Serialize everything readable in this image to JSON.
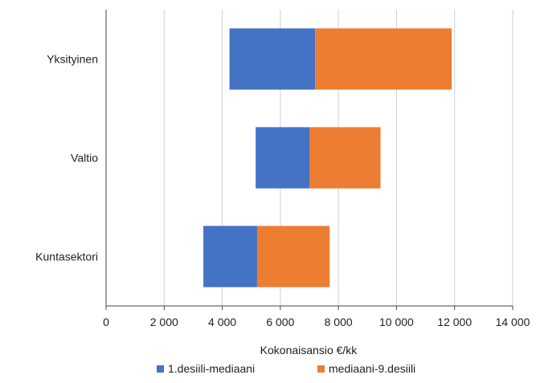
{
  "chart_data": {
    "type": "bar",
    "orientation": "horizontal",
    "stacked": true,
    "floating": true,
    "title": "",
    "xlabel": "Kokonaisansio €/kk",
    "ylabel": "",
    "xlim": [
      0,
      14000
    ],
    "x_ticks": [
      0,
      2000,
      4000,
      6000,
      8000,
      10000,
      12000,
      14000
    ],
    "x_tick_labels": [
      "0",
      "2 000",
      "4 000",
      "6 000",
      "8 000",
      "10 000",
      "12 000",
      "14 000"
    ],
    "grid": true,
    "legend_position": "bottom",
    "categories": [
      "Yksityinen",
      "Valtio",
      "Kuntasektori"
    ],
    "start_values": [
      4250,
      5150,
      3350
    ],
    "series": [
      {
        "name": "1.desiili-mediaani",
        "color": "#4472C4",
        "values": [
          2950,
          1850,
          1850
        ]
      },
      {
        "name": "mediaani-9.desiili",
        "color": "#ED7D31",
        "values": [
          4700,
          2450,
          2500
        ]
      }
    ]
  }
}
